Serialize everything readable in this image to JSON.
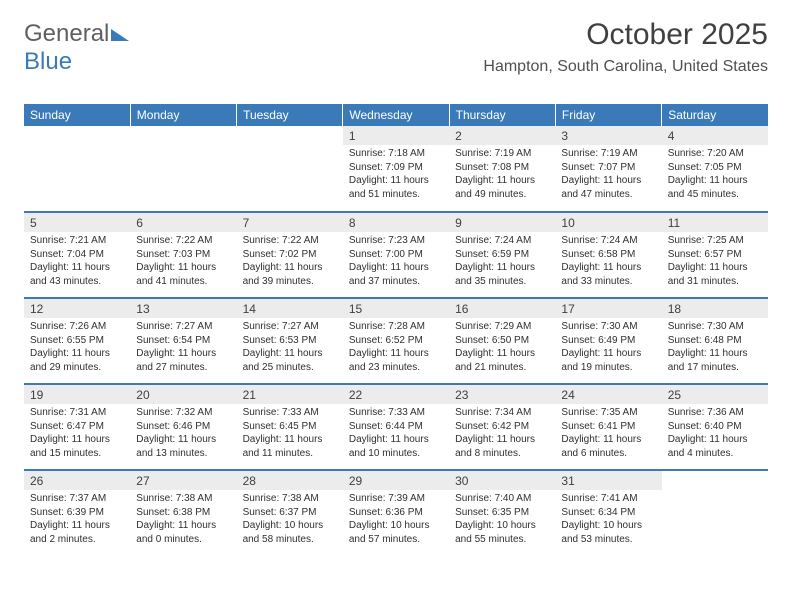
{
  "logo": {
    "text1": "General",
    "text2": "Blue"
  },
  "title": "October 2025",
  "location": "Hampton, South Carolina, United States",
  "header_color": "#3a7ab8",
  "daynum_bg": "#ececec",
  "text_color": "#404040",
  "weekdays": [
    "Sunday",
    "Monday",
    "Tuesday",
    "Wednesday",
    "Thursday",
    "Friday",
    "Saturday"
  ],
  "weeks": [
    [
      null,
      null,
      null,
      {
        "n": "1",
        "sr": "7:18 AM",
        "ss": "7:09 PM",
        "dl": "11 hours and 51 minutes."
      },
      {
        "n": "2",
        "sr": "7:19 AM",
        "ss": "7:08 PM",
        "dl": "11 hours and 49 minutes."
      },
      {
        "n": "3",
        "sr": "7:19 AM",
        "ss": "7:07 PM",
        "dl": "11 hours and 47 minutes."
      },
      {
        "n": "4",
        "sr": "7:20 AM",
        "ss": "7:05 PM",
        "dl": "11 hours and 45 minutes."
      }
    ],
    [
      {
        "n": "5",
        "sr": "7:21 AM",
        "ss": "7:04 PM",
        "dl": "11 hours and 43 minutes."
      },
      {
        "n": "6",
        "sr": "7:22 AM",
        "ss": "7:03 PM",
        "dl": "11 hours and 41 minutes."
      },
      {
        "n": "7",
        "sr": "7:22 AM",
        "ss": "7:02 PM",
        "dl": "11 hours and 39 minutes."
      },
      {
        "n": "8",
        "sr": "7:23 AM",
        "ss": "7:00 PM",
        "dl": "11 hours and 37 minutes."
      },
      {
        "n": "9",
        "sr": "7:24 AM",
        "ss": "6:59 PM",
        "dl": "11 hours and 35 minutes."
      },
      {
        "n": "10",
        "sr": "7:24 AM",
        "ss": "6:58 PM",
        "dl": "11 hours and 33 minutes."
      },
      {
        "n": "11",
        "sr": "7:25 AM",
        "ss": "6:57 PM",
        "dl": "11 hours and 31 minutes."
      }
    ],
    [
      {
        "n": "12",
        "sr": "7:26 AM",
        "ss": "6:55 PM",
        "dl": "11 hours and 29 minutes."
      },
      {
        "n": "13",
        "sr": "7:27 AM",
        "ss": "6:54 PM",
        "dl": "11 hours and 27 minutes."
      },
      {
        "n": "14",
        "sr": "7:27 AM",
        "ss": "6:53 PM",
        "dl": "11 hours and 25 minutes."
      },
      {
        "n": "15",
        "sr": "7:28 AM",
        "ss": "6:52 PM",
        "dl": "11 hours and 23 minutes."
      },
      {
        "n": "16",
        "sr": "7:29 AM",
        "ss": "6:50 PM",
        "dl": "11 hours and 21 minutes."
      },
      {
        "n": "17",
        "sr": "7:30 AM",
        "ss": "6:49 PM",
        "dl": "11 hours and 19 minutes."
      },
      {
        "n": "18",
        "sr": "7:30 AM",
        "ss": "6:48 PM",
        "dl": "11 hours and 17 minutes."
      }
    ],
    [
      {
        "n": "19",
        "sr": "7:31 AM",
        "ss": "6:47 PM",
        "dl": "11 hours and 15 minutes."
      },
      {
        "n": "20",
        "sr": "7:32 AM",
        "ss": "6:46 PM",
        "dl": "11 hours and 13 minutes."
      },
      {
        "n": "21",
        "sr": "7:33 AM",
        "ss": "6:45 PM",
        "dl": "11 hours and 11 minutes."
      },
      {
        "n": "22",
        "sr": "7:33 AM",
        "ss": "6:44 PM",
        "dl": "11 hours and 10 minutes."
      },
      {
        "n": "23",
        "sr": "7:34 AM",
        "ss": "6:42 PM",
        "dl": "11 hours and 8 minutes."
      },
      {
        "n": "24",
        "sr": "7:35 AM",
        "ss": "6:41 PM",
        "dl": "11 hours and 6 minutes."
      },
      {
        "n": "25",
        "sr": "7:36 AM",
        "ss": "6:40 PM",
        "dl": "11 hours and 4 minutes."
      }
    ],
    [
      {
        "n": "26",
        "sr": "7:37 AM",
        "ss": "6:39 PM",
        "dl": "11 hours and 2 minutes."
      },
      {
        "n": "27",
        "sr": "7:38 AM",
        "ss": "6:38 PM",
        "dl": "11 hours and 0 minutes."
      },
      {
        "n": "28",
        "sr": "7:38 AM",
        "ss": "6:37 PM",
        "dl": "10 hours and 58 minutes."
      },
      {
        "n": "29",
        "sr": "7:39 AM",
        "ss": "6:36 PM",
        "dl": "10 hours and 57 minutes."
      },
      {
        "n": "30",
        "sr": "7:40 AM",
        "ss": "6:35 PM",
        "dl": "10 hours and 55 minutes."
      },
      {
        "n": "31",
        "sr": "7:41 AM",
        "ss": "6:34 PM",
        "dl": "10 hours and 53 minutes."
      },
      null
    ]
  ],
  "labels": {
    "sunrise": "Sunrise:",
    "sunset": "Sunset:",
    "daylight": "Daylight:"
  }
}
